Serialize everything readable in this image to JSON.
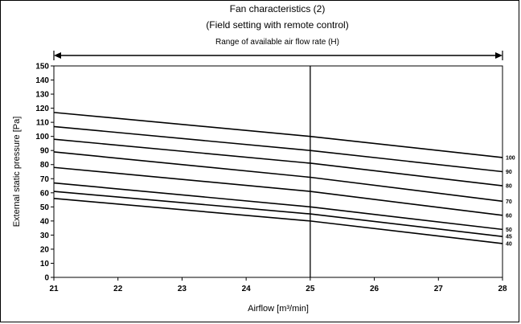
{
  "chart_data": {
    "type": "line",
    "title": "Fan characteristics (2)",
    "subtitle": "(Field setting with remote control)",
    "range_annotation": "Range of available air flow rate (H)",
    "xlabel": "Airflow [m³/min]",
    "ylabel": "External static pressure [Pa]",
    "xlim": [
      21,
      28
    ],
    "ylim": [
      0,
      150
    ],
    "x_ticks": [
      "21",
      "22",
      "23",
      "24",
      "25",
      "26",
      "27",
      "28"
    ],
    "y_ticks": [
      "0",
      "10",
      "20",
      "30",
      "40",
      "50",
      "60",
      "70",
      "80",
      "90",
      "100",
      "110",
      "120",
      "130",
      "140",
      "150"
    ],
    "grid": false,
    "vertical_marker_x": 25,
    "x": [
      21,
      25,
      28
    ],
    "series": [
      {
        "name": "100",
        "values": [
          117,
          100,
          85
        ]
      },
      {
        "name": "90",
        "values": [
          107,
          90,
          75
        ]
      },
      {
        "name": "80",
        "values": [
          98,
          81,
          65
        ]
      },
      {
        "name": "70",
        "values": [
          89,
          71,
          54
        ]
      },
      {
        "name": "60",
        "values": [
          78,
          61,
          44
        ]
      },
      {
        "name": "50",
        "values": [
          67,
          50,
          34
        ]
      },
      {
        "name": "45",
        "values": [
          61,
          45,
          29
        ]
      },
      {
        "name": "40",
        "values": [
          56,
          40,
          24
        ]
      }
    ]
  },
  "colors": {
    "line": "#000000",
    "background": "#ffffff"
  }
}
